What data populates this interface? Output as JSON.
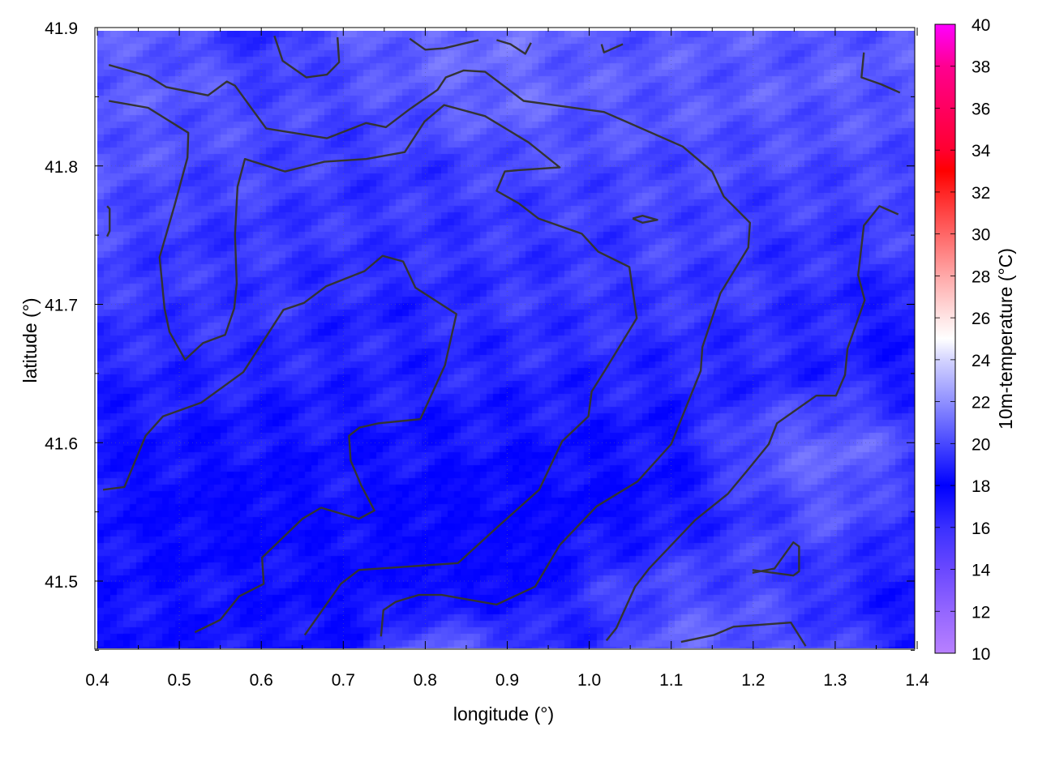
{
  "chart_data": {
    "type": "heatmap",
    "title": "",
    "xlabel": "longitude (°)",
    "ylabel": "latitude (°)",
    "colorbar_label": "10m-temperature (°C)",
    "xlim": [
      0.4,
      1.4
    ],
    "ylim": [
      41.45,
      41.9
    ],
    "xticks": [
      "0.4",
      "0.5",
      "0.6",
      "0.7",
      "0.8",
      "0.9",
      "1.0",
      "1.1",
      "1.2",
      "1.3",
      "1.4"
    ],
    "yticks": [
      "41.5",
      "41.6",
      "41.7",
      "41.8",
      "41.9"
    ],
    "cbrange": [
      10,
      40
    ],
    "cbticks": [
      "10",
      "12",
      "14",
      "16",
      "18",
      "20",
      "22",
      "24",
      "26",
      "28",
      "30",
      "32",
      "34",
      "36",
      "38",
      "40"
    ],
    "grid": true,
    "colormap": [
      [
        10,
        "#b880ff"
      ],
      [
        12,
        "#9466ff"
      ],
      [
        14,
        "#6a48ff"
      ],
      [
        16,
        "#3a30ff"
      ],
      [
        18,
        "#0000ff"
      ],
      [
        20,
        "#4848ff"
      ],
      [
        22,
        "#9090ff"
      ],
      [
        24,
        "#d4d4ff"
      ],
      [
        25,
        "#ffffff"
      ],
      [
        26,
        "#ffe4e4"
      ],
      [
        28,
        "#ffa8a8"
      ],
      [
        30,
        "#ff6666"
      ],
      [
        32,
        "#ff2424"
      ],
      [
        33,
        "#ff0000"
      ],
      [
        34,
        "#ff0030"
      ],
      [
        36,
        "#ff0060"
      ],
      [
        38,
        "#ff0090"
      ],
      [
        40,
        "#ff00ff"
      ]
    ],
    "grid_lon": [
      0.4,
      0.5,
      0.6,
      0.7,
      0.8,
      0.9,
      1.0,
      1.1,
      1.2,
      1.3,
      1.4
    ],
    "grid_lat": [
      41.9,
      41.85,
      41.8,
      41.75,
      41.7,
      41.65,
      41.6,
      41.55,
      41.5,
      41.45
    ],
    "temperature": [
      [
        20.5,
        20.5,
        19.0,
        20.5,
        21.0,
        21.0,
        20.5,
        20.5,
        20.5,
        20.5,
        20.5
      ],
      [
        20.5,
        20.5,
        20.0,
        20.0,
        20.5,
        21.0,
        20.5,
        20.5,
        20.5,
        20.5,
        20.5
      ],
      [
        20.5,
        20.0,
        20.0,
        19.5,
        19.5,
        20.0,
        20.0,
        20.0,
        20.0,
        20.0,
        20.0
      ],
      [
        20.0,
        19.5,
        19.5,
        19.5,
        19.5,
        19.5,
        19.5,
        20.0,
        19.5,
        19.5,
        20.0
      ],
      [
        19.5,
        19.5,
        19.5,
        19.0,
        19.0,
        19.5,
        19.5,
        19.5,
        19.5,
        19.0,
        18.5
      ],
      [
        19.0,
        19.0,
        19.0,
        19.0,
        19.0,
        19.0,
        19.0,
        19.0,
        19.0,
        19.0,
        18.5
      ],
      [
        18.5,
        18.5,
        18.5,
        18.5,
        18.5,
        18.5,
        18.5,
        18.5,
        20.5,
        21.0,
        20.0
      ],
      [
        18.5,
        18.0,
        18.0,
        18.5,
        18.0,
        18.0,
        18.0,
        18.5,
        19.5,
        20.5,
        19.0
      ],
      [
        18.5,
        18.5,
        18.5,
        18.0,
        18.0,
        17.5,
        19.5,
        20.0,
        20.0,
        19.0,
        18.5
      ],
      [
        18.5,
        18.5,
        18.5,
        18.5,
        21.0,
        20.0,
        19.0,
        21.0,
        20.5,
        20.0,
        18.5
      ]
    ],
    "contour_color": "#333333",
    "contours": [
      [
        [
          0.414,
          41.873
        ],
        [
          0.462,
          41.865
        ],
        [
          0.484,
          41.857
        ],
        [
          0.535,
          41.851
        ],
        [
          0.558,
          41.861
        ],
        [
          0.568,
          41.858
        ],
        [
          0.606,
          41.827
        ],
        [
          0.68,
          41.82
        ],
        [
          0.728,
          41.831
        ],
        [
          0.752,
          41.828
        ],
        [
          0.781,
          41.841
        ],
        [
          0.815,
          41.855
        ],
        [
          0.825,
          41.864
        ],
        [
          0.847,
          41.869
        ],
        [
          0.873,
          41.868
        ],
        [
          0.92,
          41.847
        ],
        [
          1.018,
          41.839
        ],
        [
          1.114,
          41.814
        ],
        [
          1.15,
          41.796
        ],
        [
          1.164,
          41.778
        ],
        [
          1.196,
          41.759
        ],
        [
          1.194,
          41.741
        ],
        [
          1.16,
          41.708
        ],
        [
          1.138,
          41.669
        ],
        [
          1.136,
          41.652
        ],
        [
          1.1,
          41.599
        ],
        [
          1.059,
          41.572
        ],
        [
          1.009,
          41.554
        ],
        [
          0.964,
          41.526
        ],
        [
          0.934,
          41.496
        ],
        [
          0.887,
          41.483
        ],
        [
          0.82,
          41.49
        ],
        [
          0.792,
          41.49
        ],
        [
          0.764,
          41.485
        ],
        [
          0.749,
          41.479
        ],
        [
          0.746,
          41.46
        ]
      ],
      [
        [
          0.414,
          41.847
        ],
        [
          0.462,
          41.842
        ],
        [
          0.511,
          41.824
        ],
        [
          0.51,
          41.806
        ],
        [
          0.494,
          41.771
        ],
        [
          0.476,
          41.734
        ],
        [
          0.482,
          41.697
        ],
        [
          0.488,
          41.68
        ],
        [
          0.507,
          41.66
        ],
        [
          0.529,
          41.672
        ],
        [
          0.556,
          41.678
        ],
        [
          0.567,
          41.697
        ],
        [
          0.57,
          41.715
        ],
        [
          0.568,
          41.75
        ],
        [
          0.571,
          41.785
        ],
        [
          0.58,
          41.805
        ],
        [
          0.629,
          41.796
        ],
        [
          0.677,
          41.803
        ],
        [
          0.728,
          41.805
        ],
        [
          0.775,
          41.81
        ],
        [
          0.799,
          41.832
        ],
        [
          0.823,
          41.844
        ],
        [
          0.873,
          41.836
        ],
        [
          0.926,
          41.817
        ],
        [
          0.964,
          41.799
        ],
        [
          0.914,
          41.797
        ],
        [
          0.897,
          41.796
        ],
        [
          0.887,
          41.782
        ],
        [
          0.914,
          41.773
        ],
        [
          0.938,
          41.762
        ],
        [
          0.991,
          41.751
        ],
        [
          1.011,
          41.738
        ],
        [
          1.049,
          41.727
        ],
        [
          1.058,
          41.69
        ],
        [
          1.02,
          41.653
        ],
        [
          1.003,
          41.637
        ],
        [
          0.999,
          41.619
        ],
        [
          0.967,
          41.601
        ],
        [
          0.939,
          41.566
        ],
        [
          0.888,
          41.539
        ],
        [
          0.84,
          41.513
        ],
        [
          0.719,
          41.508
        ],
        [
          0.697,
          41.498
        ],
        [
          0.653,
          41.461
        ]
      ],
      [
        [
          0.407,
          41.566
        ],
        [
          0.433,
          41.568
        ],
        [
          0.459,
          41.605
        ],
        [
          0.48,
          41.619
        ],
        [
          0.527,
          41.629
        ],
        [
          0.578,
          41.651
        ],
        [
          0.627,
          41.696
        ],
        [
          0.652,
          41.701
        ],
        [
          0.679,
          41.713
        ],
        [
          0.726,
          41.724
        ],
        [
          0.748,
          41.735
        ],
        [
          0.773,
          41.731
        ],
        [
          0.788,
          41.712
        ],
        [
          0.838,
          41.693
        ],
        [
          0.824,
          41.656
        ],
        [
          0.794,
          41.617
        ],
        [
          0.743,
          41.614
        ],
        [
          0.72,
          41.611
        ],
        [
          0.707,
          41.605
        ],
        [
          0.709,
          41.587
        ],
        [
          0.722,
          41.569
        ],
        [
          0.738,
          41.551
        ],
        [
          0.719,
          41.545
        ],
        [
          0.673,
          41.553
        ],
        [
          0.65,
          41.545
        ],
        [
          0.601,
          41.517
        ],
        [
          0.603,
          41.498
        ],
        [
          0.573,
          41.489
        ],
        [
          0.55,
          41.472
        ],
        [
          0.519,
          41.463
        ]
      ],
      [
        [
          1.377,
          41.765
        ],
        [
          1.354,
          41.771
        ],
        [
          1.335,
          41.757
        ],
        [
          1.328,
          41.721
        ],
        [
          1.336,
          41.703
        ],
        [
          1.315,
          41.668
        ],
        [
          1.312,
          41.649
        ],
        [
          1.301,
          41.634
        ],
        [
          1.277,
          41.634
        ],
        [
          1.229,
          41.614
        ],
        [
          1.219,
          41.599
        ],
        [
          1.193,
          41.58
        ],
        [
          1.169,
          41.563
        ],
        [
          1.129,
          41.544
        ],
        [
          1.073,
          41.509
        ],
        [
          1.056,
          41.496
        ],
        [
          1.033,
          41.466
        ],
        [
          1.021,
          41.457
        ]
      ],
      [
        [
          0.616,
          41.894
        ],
        [
          0.626,
          41.876
        ],
        [
          0.655,
          41.864
        ],
        [
          0.68,
          41.866
        ],
        [
          0.695,
          41.875
        ],
        [
          0.693,
          41.893
        ]
      ],
      [
        [
          0.781,
          41.892
        ],
        [
          0.8,
          41.884
        ],
        [
          0.823,
          41.885
        ],
        [
          0.865,
          41.891
        ]
      ],
      [
        [
          0.887,
          41.891
        ],
        [
          0.904,
          41.888
        ],
        [
          0.922,
          41.881
        ],
        [
          0.929,
          41.889
        ]
      ],
      [
        [
          1.015,
          41.888
        ],
        [
          1.018,
          41.882
        ],
        [
          1.041,
          41.888
        ]
      ],
      [
        [
          1.335,
          41.882
        ],
        [
          1.332,
          41.864
        ],
        [
          1.356,
          41.859
        ],
        [
          1.379,
          41.853
        ]
      ],
      [
        [
          1.053,
          41.762
        ],
        [
          1.065,
          41.764
        ],
        [
          1.083,
          41.761
        ],
        [
          1.065,
          41.759
        ],
        [
          1.053,
          41.762
        ]
      ],
      [
        [
          1.199,
          41.506
        ],
        [
          1.226,
          41.509
        ],
        [
          1.249,
          41.528
        ],
        [
          1.256,
          41.525
        ],
        [
          1.256,
          41.507
        ],
        [
          1.249,
          41.504
        ],
        [
          1.199,
          41.508
        ]
      ],
      [
        [
          1.112,
          41.456
        ],
        [
          1.152,
          41.461
        ],
        [
          1.176,
          41.467
        ],
        [
          1.246,
          41.47
        ],
        [
          1.264,
          41.453
        ]
      ],
      [
        [
          0.412,
          41.771
        ],
        [
          0.415,
          41.769
        ],
        [
          0.415,
          41.753
        ],
        [
          0.412,
          41.749
        ]
      ]
    ]
  }
}
